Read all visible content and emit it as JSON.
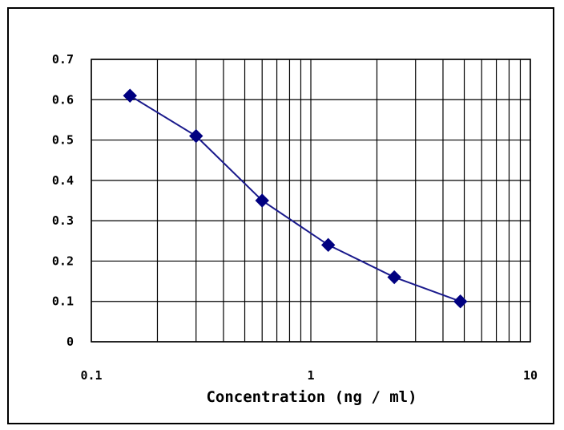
{
  "chart_data": {
    "type": "line",
    "xscale": "log",
    "xlim": [
      0.1,
      10
    ],
    "ylim": [
      0,
      0.7
    ],
    "xlabel": "Concentration (ng / ml)",
    "ylabel": "",
    "title": "",
    "x_ticks": [
      "0.1",
      "1",
      "10"
    ],
    "y_ticks": [
      "0",
      "0.1",
      "0.2",
      "0.3",
      "0.4",
      "0.5",
      "0.6",
      "0.7"
    ],
    "grid": true,
    "series": [
      {
        "x": [
          0.15,
          0.3,
          0.6,
          1.2,
          2.4,
          4.8
        ],
        "y": [
          0.61,
          0.51,
          0.35,
          0.24,
          0.16,
          0.1
        ]
      }
    ],
    "colors": {
      "line": "#1a1a8c",
      "marker": "#000080",
      "grid": "#000000"
    }
  }
}
